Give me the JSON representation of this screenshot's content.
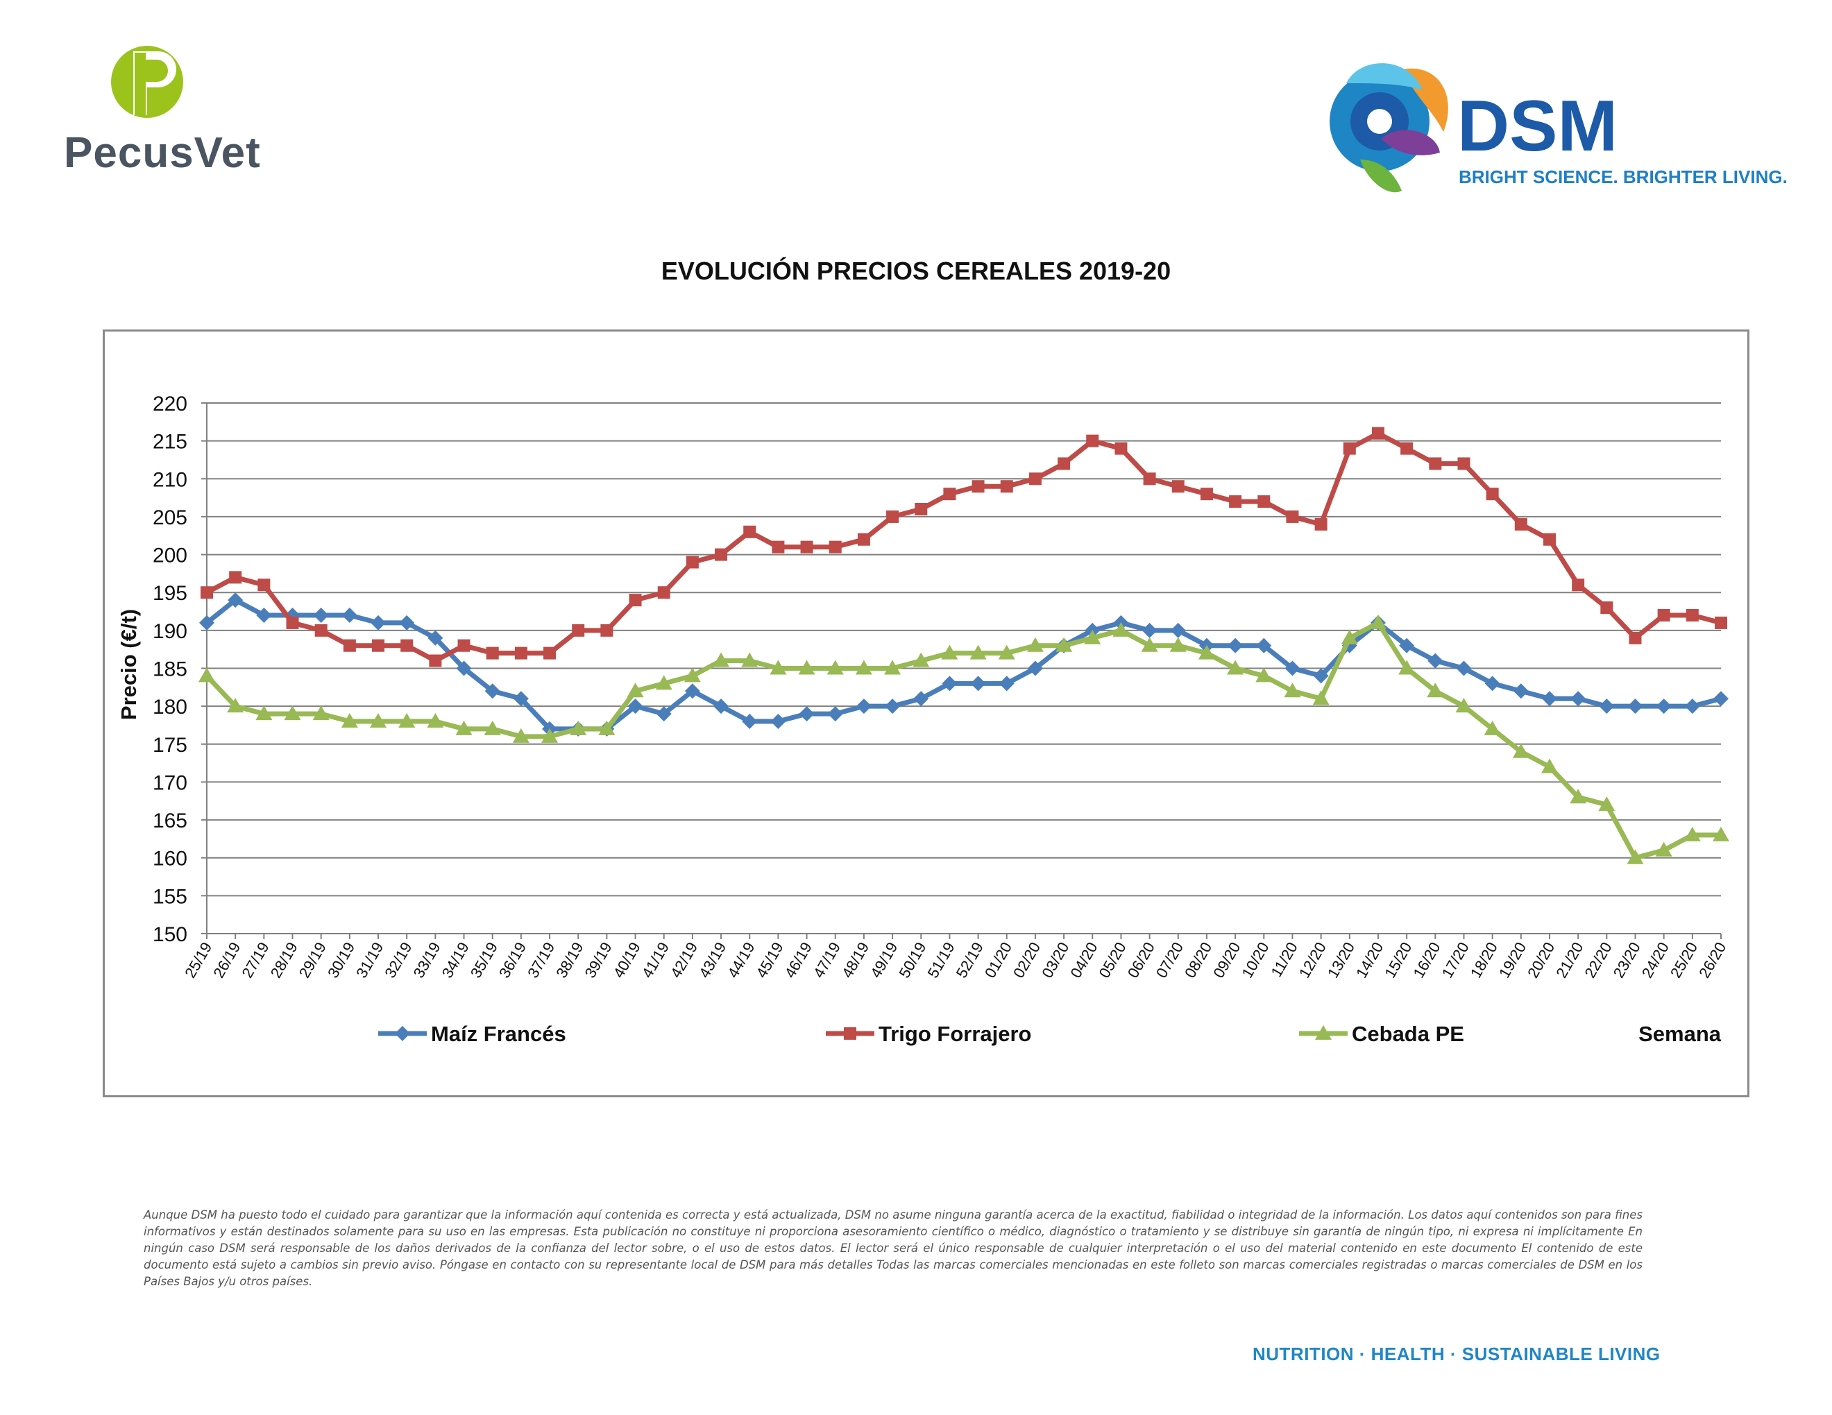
{
  "header": {
    "left_brand": "PecusVet",
    "right_brand": "DSM",
    "right_tagline": "BRIGHT SCIENCE. BRIGHTER LIVING."
  },
  "colors": {
    "maiz": "#4a7ebb",
    "trigo": "#be4b48",
    "cebada": "#98b954",
    "grid": "#808080",
    "pecusvet_green": "#9bc31c",
    "dsm_blue": "#1d5aa8",
    "footer_blue": "#1f86c6"
  },
  "chart_data": {
    "type": "line",
    "title": "EVOLUCIÓN PRECIOS CEREALES 2019-20",
    "ylabel": "Precio (€/t)",
    "xlabel": "Semana",
    "ylim": [
      150,
      220
    ],
    "yticks": [
      150,
      155,
      160,
      165,
      170,
      175,
      180,
      185,
      190,
      195,
      200,
      205,
      210,
      215,
      220
    ],
    "grid": true,
    "legend": "bottom",
    "categories": [
      "25/19",
      "26/19",
      "27/19",
      "28/19",
      "29/19",
      "30/19",
      "31/19",
      "32/19",
      "33/19",
      "34/19",
      "35/19",
      "36/19",
      "37/19",
      "38/19",
      "39/19",
      "40/19",
      "41/19",
      "42/19",
      "43/19",
      "44/19",
      "45/19",
      "46/19",
      "47/19",
      "48/19",
      "49/19",
      "50/19",
      "51/19",
      "52/19",
      "01/20",
      "02/20",
      "03/20",
      "04/20",
      "05/20",
      "06/20",
      "07/20",
      "08/20",
      "09/20",
      "10/20",
      "11/20",
      "12/20",
      "13/20",
      "14/20",
      "15/20",
      "16/20",
      "17/20",
      "18/20",
      "19/20",
      "20/20",
      "21/20",
      "22/20",
      "23/20",
      "24/20",
      "25/20",
      "26/20"
    ],
    "series": [
      {
        "name": "Maíz Francés",
        "marker": "diamond",
        "values": [
          191,
          194,
          192,
          192,
          192,
          192,
          191,
          191,
          189,
          185,
          182,
          181,
          177,
          177,
          177,
          180,
          179,
          182,
          180,
          178,
          178,
          179,
          179,
          180,
          180,
          181,
          183,
          183,
          183,
          185,
          188,
          190,
          191,
          190,
          190,
          188,
          188,
          188,
          185,
          184,
          188,
          191,
          188,
          186,
          185,
          183,
          182,
          181,
          181,
          180,
          180,
          180,
          180,
          181
        ]
      },
      {
        "name": "Trigo Forrajero",
        "marker": "square",
        "values": [
          195,
          197,
          196,
          191,
          190,
          188,
          188,
          188,
          186,
          188,
          187,
          187,
          187,
          190,
          190,
          194,
          195,
          199,
          200,
          203,
          201,
          201,
          201,
          202,
          205,
          206,
          208,
          209,
          209,
          210,
          212,
          215,
          214,
          210,
          209,
          208,
          207,
          207,
          205,
          204,
          214,
          216,
          214,
          212,
          212,
          208,
          204,
          202,
          196,
          193,
          189,
          192,
          192,
          191
        ]
      },
      {
        "name": "Cebada PE",
        "marker": "triangle",
        "values": [
          184,
          180,
          179,
          179,
          179,
          178,
          178,
          178,
          178,
          177,
          177,
          176,
          176,
          177,
          177,
          182,
          183,
          184,
          186,
          186,
          185,
          185,
          185,
          185,
          185,
          186,
          187,
          187,
          187,
          188,
          188,
          189,
          190,
          188,
          188,
          187,
          185,
          184,
          182,
          181,
          189,
          191,
          185,
          182,
          180,
          177,
          174,
          172,
          168,
          167,
          160,
          161,
          163,
          163
        ]
      }
    ]
  },
  "disclaimer": "Aunque DSM ha puesto todo el cuidado para garantizar que la información aquí contenida es correcta y está actualizada, DSM no asume ninguna garantía acerca de la exactitud, fiabilidad o integridad de la información. Los datos aquí contenidos son para fines informativos y están destinados solamente para su uso en las empresas. Esta publicación no constituye ni proporciona asesoramiento científico o médico, diagnóstico o tratamiento y se distribuye sin garantía de ningún tipo, ni expresa ni implícitamente En ningún caso DSM será responsable de los daños derivados de la confianza del lector sobre, o el uso de estos datos. El lector será el único responsable de cualquier interpretación o el uso del material contenido en este documento El contenido de este documento está sujeto a cambios sin previo aviso. Póngase en contacto con su representante local de DSM para más detalles Todas las marcas comerciales mencionadas en este folleto son marcas comerciales registradas o marcas comerciales de DSM en los Países Bajos y/u otros países.",
  "footer": "NUTRITION · HEALTH · SUSTAINABLE LIVING"
}
